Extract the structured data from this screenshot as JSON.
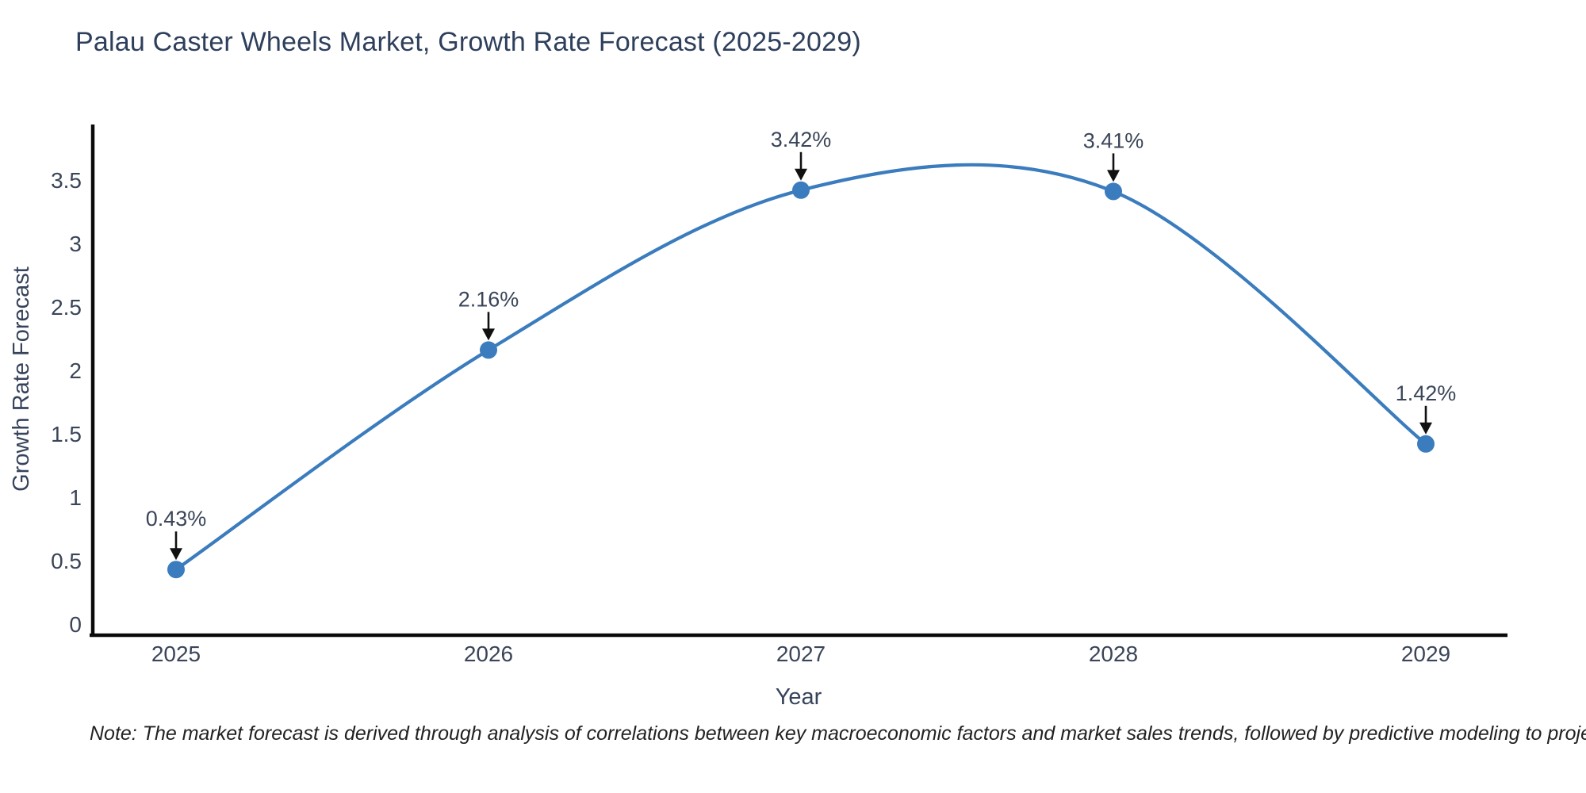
{
  "title": "Palau Caster Wheels Market, Growth Rate Forecast (2025-2029)",
  "note": "Note: The market forecast is derived through analysis of correlations between key macroeconomic factors and market sales trends, followed by predictive modeling to project future sales",
  "colors": {
    "line": "#3a7cbd",
    "marker": "#3a7cbd",
    "axis": "#0a0a0a",
    "arrow": "#111111",
    "title_text": "#2e3f5c",
    "tick_text": "#3a4559"
  },
  "chart_data": {
    "type": "line",
    "title": "Palau Caster Wheels Market, Growth Rate Forecast (2025-2029)",
    "x": [
      "2025",
      "2026",
      "2027",
      "2028",
      "2029"
    ],
    "series": [
      {
        "name": "Growth Rate Forecast",
        "values": [
          0.43,
          2.16,
          3.42,
          3.41,
          1.42
        ]
      }
    ],
    "point_labels": [
      "0.43%",
      "2.16%",
      "3.42%",
      "3.41%",
      "1.42%"
    ],
    "xlabel": "Year",
    "ylabel": "Growth Rate Forecast",
    "ylim": [
      0,
      3.5
    ],
    "yticks": [
      0,
      0.5,
      1,
      1.5,
      2,
      2.5,
      3,
      3.5
    ],
    "grid": false,
    "legend": "none",
    "smooth": true,
    "annotations": "arrow-down-to-point"
  }
}
